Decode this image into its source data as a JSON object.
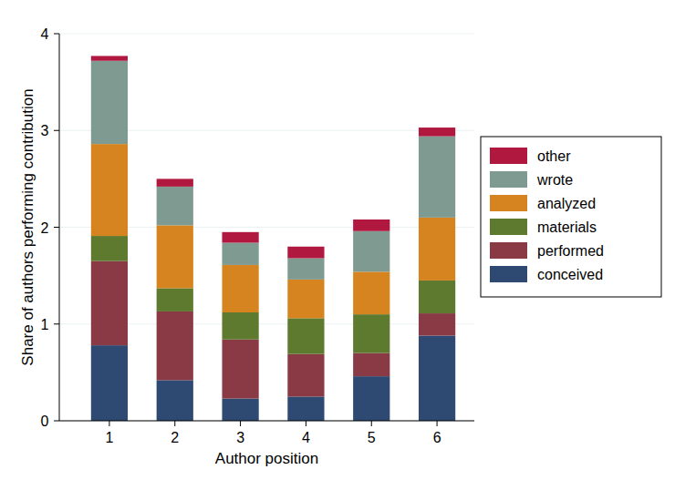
{
  "chart_data": {
    "type": "bar",
    "stacked": true,
    "x_label": "Author position",
    "y_label": "Share of authors performing contribution",
    "categories": [
      "1",
      "2",
      "3",
      "4",
      "5",
      "6"
    ],
    "ylim": [
      0,
      4
    ],
    "yticks": [
      0,
      1,
      2,
      3,
      4
    ],
    "grid": true,
    "legend": "right",
    "series": [
      {
        "name": "conceived",
        "color": "#2e4a72",
        "values": [
          0.78,
          0.42,
          0.23,
          0.25,
          0.46,
          0.88
        ]
      },
      {
        "name": "performed",
        "color": "#8a3a45",
        "values": [
          0.87,
          0.71,
          0.61,
          0.44,
          0.24,
          0.23
        ]
      },
      {
        "name": "materials",
        "color": "#5d7a2e",
        "values": [
          0.26,
          0.24,
          0.28,
          0.37,
          0.4,
          0.34
        ]
      },
      {
        "name": "analyzed",
        "color": "#d6841f",
        "values": [
          0.95,
          0.65,
          0.49,
          0.4,
          0.44,
          0.65
        ]
      },
      {
        "name": "wrote",
        "color": "#7f9a91",
        "values": [
          0.86,
          0.4,
          0.23,
          0.22,
          0.42,
          0.84
        ]
      },
      {
        "name": "other",
        "color": "#b0183f",
        "values": [
          0.05,
          0.08,
          0.11,
          0.12,
          0.12,
          0.09
        ]
      }
    ]
  }
}
